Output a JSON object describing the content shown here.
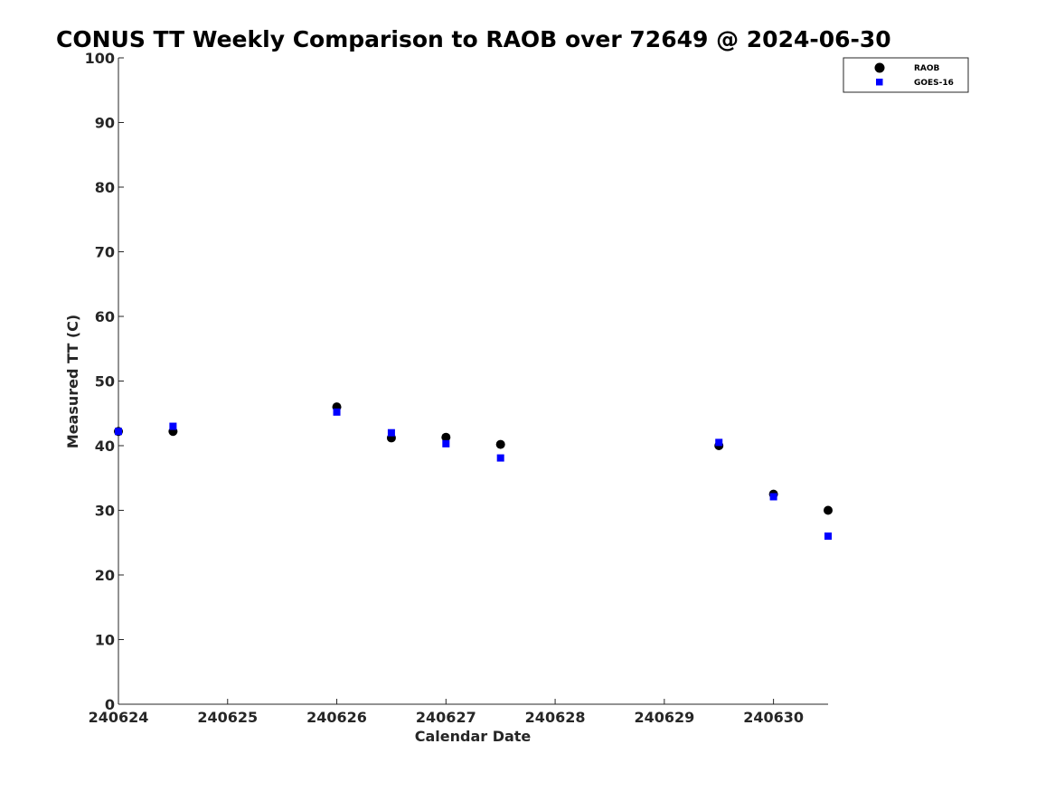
{
  "chart_data": {
    "type": "scatter",
    "title": "CONUS TT Weekly Comparison to RAOB over 72649 @ 2024-06-30",
    "xlabel": "Calendar Date",
    "ylabel": "Measured TT (C)",
    "xlim": [
      "2024-06-24 00:00",
      "2024-06-30 12:00"
    ],
    "ylim": [
      0,
      100
    ],
    "xticks": [
      {
        "value": "2024-06-24",
        "label": "240624"
      },
      {
        "value": "2024-06-25",
        "label": "240625"
      },
      {
        "value": "2024-06-26",
        "label": "240626"
      },
      {
        "value": "2024-06-27",
        "label": "240627"
      },
      {
        "value": "2024-06-28",
        "label": "240628"
      },
      {
        "value": "2024-06-29",
        "label": "240629"
      },
      {
        "value": "2024-06-30",
        "label": "240630"
      }
    ],
    "yticks": [
      0,
      10,
      20,
      30,
      40,
      50,
      60,
      70,
      80,
      90,
      100
    ],
    "grid": false,
    "legend_position": "top-right",
    "series": [
      {
        "name": "RAOB",
        "marker": "circle",
        "color": "#000000",
        "points": [
          {
            "x": "2024-06-24 00:00",
            "y": 42.2
          },
          {
            "x": "2024-06-24 12:00",
            "y": 42.2
          },
          {
            "x": "2024-06-26 00:00",
            "y": 46.0
          },
          {
            "x": "2024-06-26 12:00",
            "y": 41.2
          },
          {
            "x": "2024-06-27 00:00",
            "y": 41.3
          },
          {
            "x": "2024-06-27 12:00",
            "y": 40.2
          },
          {
            "x": "2024-06-29 12:00",
            "y": 40.0
          },
          {
            "x": "2024-06-30 00:00",
            "y": 32.5
          },
          {
            "x": "2024-06-30 12:00",
            "y": 30.0
          }
        ]
      },
      {
        "name": "GOES-16",
        "marker": "square",
        "color": "#0000ff",
        "points": [
          {
            "x": "2024-06-24 00:00",
            "y": 42.2
          },
          {
            "x": "2024-06-24 12:00",
            "y": 43.0
          },
          {
            "x": "2024-06-26 00:00",
            "y": 45.2
          },
          {
            "x": "2024-06-26 12:00",
            "y": 42.0
          },
          {
            "x": "2024-06-27 00:00",
            "y": 40.3
          },
          {
            "x": "2024-06-27 12:00",
            "y": 38.1
          },
          {
            "x": "2024-06-29 12:00",
            "y": 40.5
          },
          {
            "x": "2024-06-30 00:00",
            "y": 32.1
          },
          {
            "x": "2024-06-30 12:00",
            "y": 26.0
          }
        ]
      }
    ]
  }
}
